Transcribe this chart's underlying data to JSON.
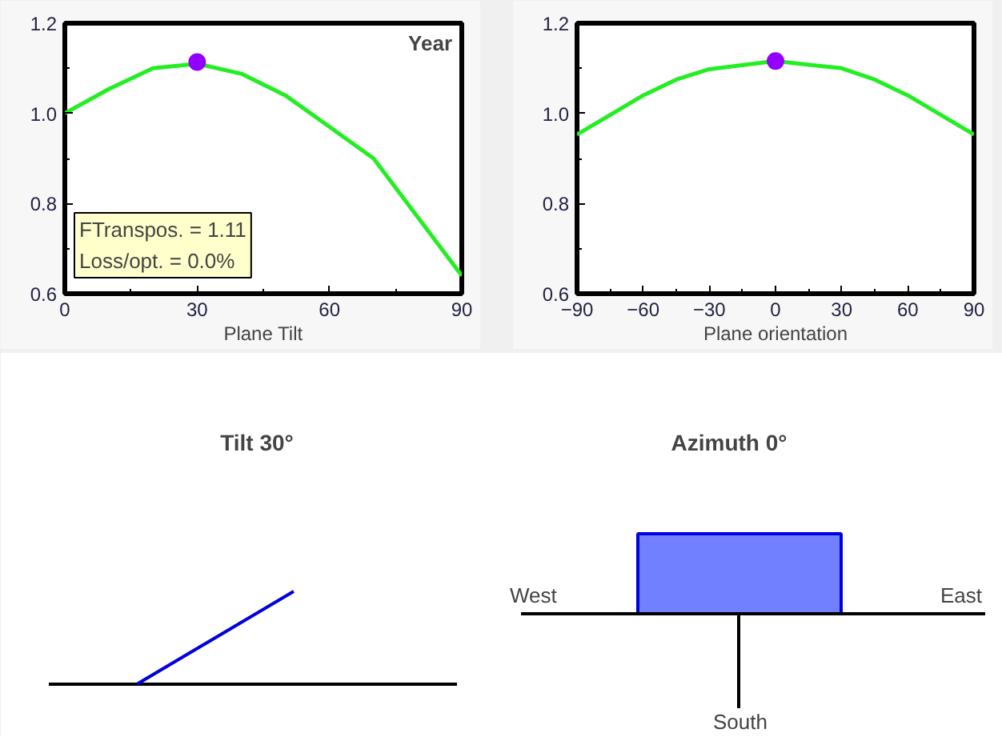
{
  "chart_data": [
    {
      "type": "line",
      "xlabel": "Plane Tilt",
      "x": [
        0,
        10,
        20,
        30,
        40,
        50,
        60,
        70,
        80,
        90
      ],
      "series": [
        {
          "type": "line",
          "color": "#22ee22",
          "values": [
            1.0,
            1.054,
            1.1,
            1.11,
            1.088,
            1.04,
            0.97,
            0.9,
            0.77,
            0.64
          ]
        },
        {
          "type": "scatter",
          "color": "#9400ff",
          "marker": "circle",
          "x": [
            30
          ],
          "values": [
            1.114
          ]
        }
      ],
      "xlim": [
        0,
        90
      ],
      "ylim": [
        0.6,
        1.2
      ],
      "xticks": [
        0,
        30,
        60,
        90
      ],
      "yticks": [
        0.6,
        0.8,
        {
          "value": 1.0,
          "label": "1.0"
        },
        1.2
      ],
      "grid": false,
      "annotations": [
        "Year",
        "FTranspos. = 1.11",
        "Loss/opt. = 0.0%"
      ]
    },
    {
      "type": "line",
      "xlabel": "Plane orientation",
      "x": [
        -90,
        -60,
        -45,
        -30,
        0,
        30,
        45,
        60,
        90
      ],
      "series": [
        {
          "type": "line",
          "color": "#22ee22",
          "values": [
            0.953,
            1.04,
            1.075,
            1.098,
            1.116,
            1.1,
            1.075,
            1.04,
            0.953
          ]
        },
        {
          "type": "scatter",
          "color": "#9400ff",
          "marker": "circle",
          "x": [
            0
          ],
          "values": [
            1.116
          ]
        }
      ],
      "xlim": [
        -90,
        90
      ],
      "ylim": [
        0.6,
        1.2
      ],
      "xticks": [
        -90,
        -60,
        -30,
        0,
        30,
        60,
        90
      ],
      "yticks": [
        0.6,
        0.8,
        {
          "value": 1.0,
          "label": "1.0"
        },
        1.2
      ],
      "grid": false
    },
    {
      "type": "other",
      "annotations": [
        "Tilt 30°",
        "Azimuth 0°",
        "West",
        "East",
        "South"
      ]
    }
  ]
}
